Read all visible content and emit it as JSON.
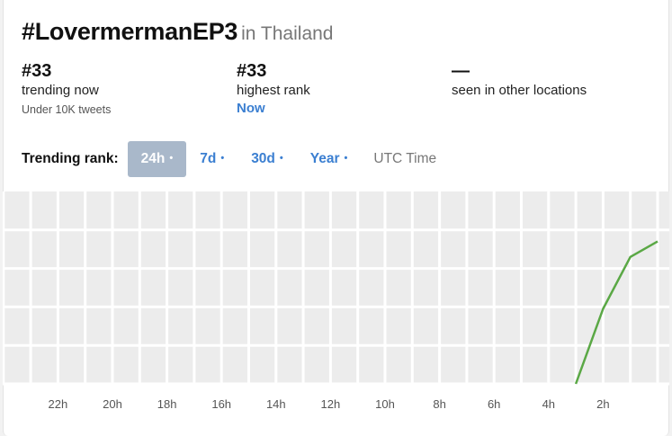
{
  "header": {
    "hashtag": "#LovermermanEP3",
    "location": "in Thailand"
  },
  "stats": {
    "current": {
      "value": "#33",
      "label": "trending now",
      "sub": "Under 10K tweets"
    },
    "highest": {
      "value": "#33",
      "label": "highest rank",
      "link": "Now"
    },
    "other": {
      "value": "—",
      "label": "seen in other locations"
    }
  },
  "controls": {
    "label": "Trending rank:",
    "dot": "•",
    "tabs": [
      {
        "label": "24h",
        "active": true
      },
      {
        "label": "7d",
        "active": false
      },
      {
        "label": "30d",
        "active": false
      },
      {
        "label": "Year",
        "active": false
      }
    ],
    "timezone": "UTC Time"
  },
  "colors": {
    "line": "#5aa845",
    "accent": "#3b7fd1",
    "active_tab": "#a9b8ca",
    "grid_bg": "#ececec"
  },
  "chart_data": {
    "type": "line",
    "xlabel": "",
    "ylabel": "",
    "x_ticks": [
      "22h",
      "20h",
      "18h",
      "16h",
      "14h",
      "12h",
      "10h",
      "8h",
      "6h",
      "4h",
      "2h"
    ],
    "series": [
      {
        "values": [
          {
            "hours_ago": 3.0,
            "y": 0.0
          },
          {
            "hours_ago": 2.0,
            "y": 0.39
          },
          {
            "hours_ago": 1.0,
            "y": 0.66
          },
          {
            "hours_ago": 0.0,
            "y": 0.74
          }
        ]
      }
    ],
    "x_range_hours_ago": [
      24,
      0
    ],
    "grid": true
  }
}
